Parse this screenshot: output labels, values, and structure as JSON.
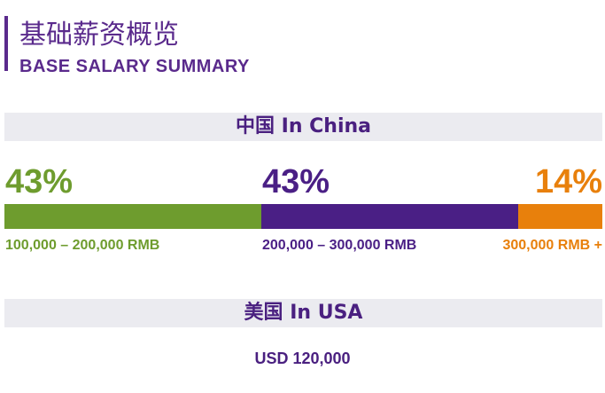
{
  "header": {
    "title_cn": "基础薪资概览",
    "title_en": "BASE SALARY SUMMARY"
  },
  "china": {
    "label": "中国 In China"
  },
  "usa": {
    "label": "美国 In USA",
    "value": "USD 120,000"
  },
  "colors": {
    "purple": "#5a2a8c",
    "green": "#6e9c2e",
    "orange": "#e8800c"
  },
  "chart_data": {
    "type": "bar",
    "orientation": "stacked-horizontal",
    "categories": [
      "100,000 – 200,000 RMB",
      "200,000 – 300,000 RMB",
      "300,000 RMB +"
    ],
    "values": [
      43,
      43,
      14
    ],
    "value_labels": [
      "43%",
      "43%",
      "14%"
    ],
    "colors": [
      "#6e9c2e",
      "#4a1f85",
      "#e8800c"
    ]
  }
}
